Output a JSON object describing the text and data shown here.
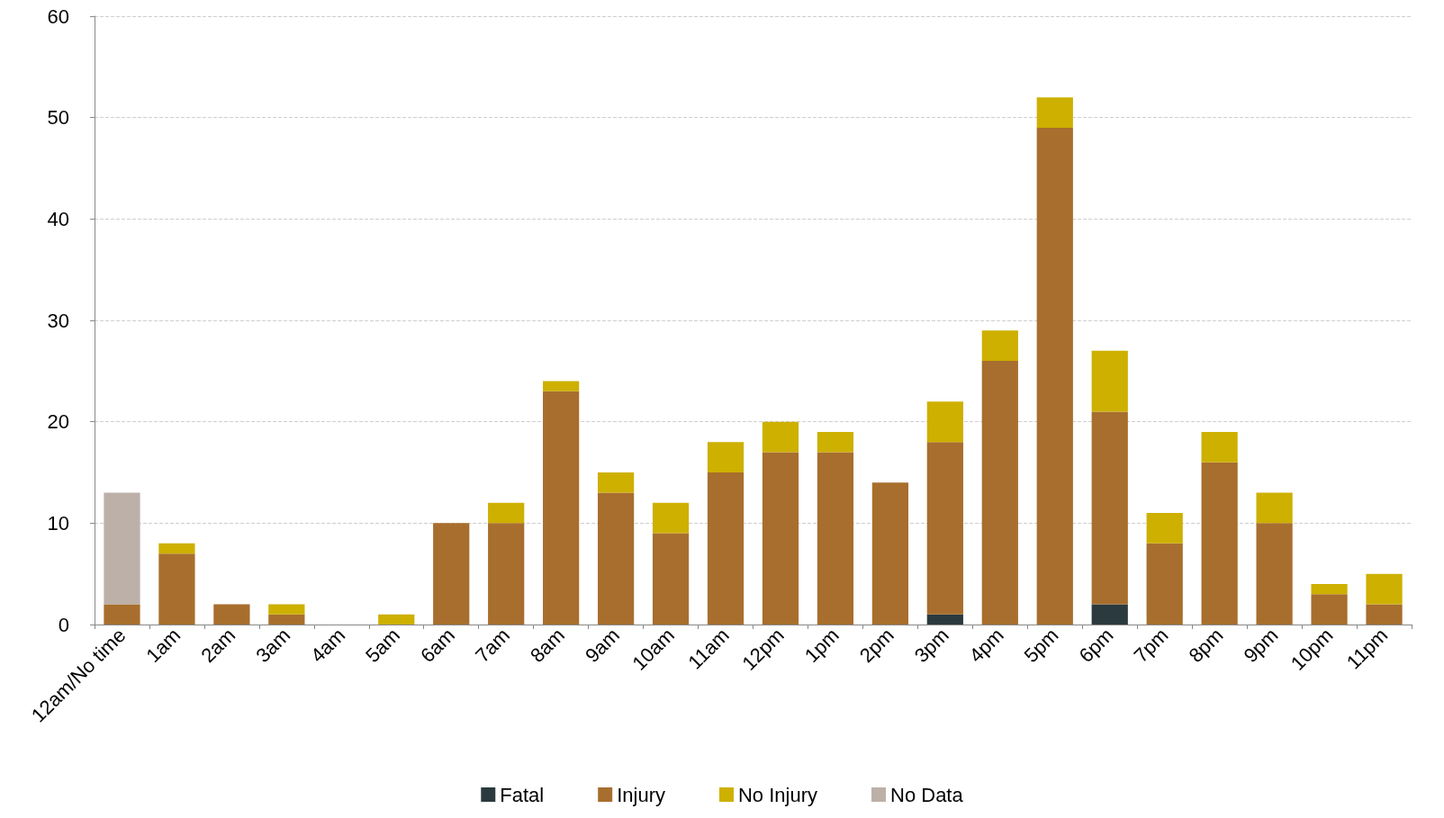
{
  "chart_data": {
    "type": "bar",
    "stacked": true,
    "categories": [
      "12am/No time",
      "1am",
      "2am",
      "3am",
      "4am",
      "5am",
      "6am",
      "7am",
      "8am",
      "9am",
      "10am",
      "11am",
      "12pm",
      "1pm",
      "2pm",
      "3pm",
      "4pm",
      "5pm",
      "6pm",
      "7pm",
      "8pm",
      "9pm",
      "10pm",
      "11pm"
    ],
    "series": [
      {
        "name": "Fatal",
        "color": "#2b3a3f",
        "values": [
          0,
          0,
          0,
          0,
          0,
          0,
          0,
          0,
          0,
          0,
          0,
          0,
          0,
          0,
          0,
          1,
          0,
          0,
          2,
          0,
          0,
          0,
          0,
          0
        ]
      },
      {
        "name": "Injury",
        "color": "#a86e2d",
        "values": [
          2,
          7,
          2,
          1,
          0,
          0,
          10,
          10,
          23,
          13,
          9,
          15,
          17,
          17,
          14,
          17,
          26,
          49,
          19,
          8,
          16,
          10,
          3,
          2
        ]
      },
      {
        "name": "No Injury",
        "color": "#cdb000",
        "values": [
          0,
          1,
          0,
          1,
          0,
          1,
          0,
          2,
          1,
          2,
          3,
          3,
          3,
          2,
          0,
          4,
          3,
          3,
          6,
          3,
          3,
          3,
          1,
          3
        ]
      },
      {
        "name": "No Data",
        "color": "#bcb0a8",
        "values": [
          11,
          0,
          0,
          0,
          0,
          0,
          0,
          0,
          0,
          0,
          0,
          0,
          0,
          0,
          0,
          0,
          0,
          0,
          0,
          0,
          0,
          0,
          0,
          0
        ]
      }
    ],
    "ylim": [
      0,
      60
    ],
    "yticks": [
      0,
      10,
      20,
      30,
      40,
      50,
      60
    ],
    "grid": "y",
    "legend": "bottom"
  }
}
